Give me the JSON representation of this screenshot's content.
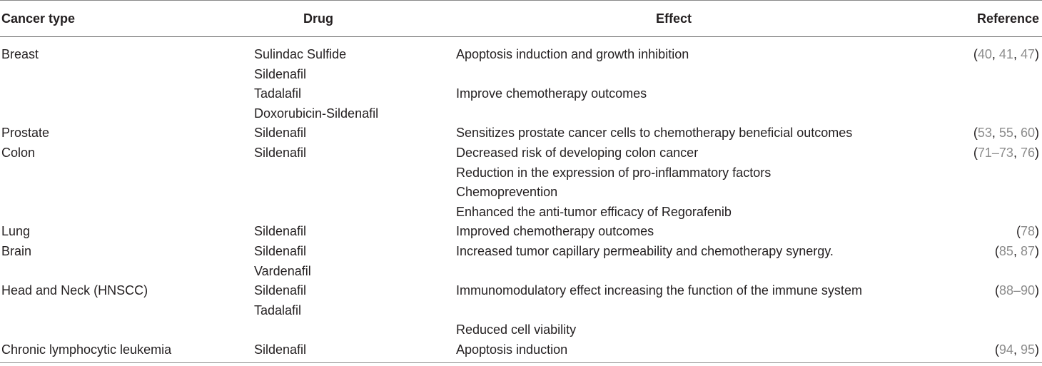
{
  "header": {
    "cancer_type": "Cancer type",
    "drug": "Drug",
    "effect": "Effect",
    "reference": "Reference"
  },
  "rows": [
    {
      "cancer_type": "Breast",
      "drug": "Sulindac Sulfide",
      "effect": "Apoptosis induction and growth inhibition",
      "ref": [
        "40",
        "41",
        "47"
      ]
    },
    {
      "cancer_type": "",
      "drug": "Sildenafil",
      "effect": "",
      "ref": []
    },
    {
      "cancer_type": "",
      "drug": "Tadalafil",
      "effect": "Improve chemotherapy outcomes",
      "ref": []
    },
    {
      "cancer_type": "",
      "drug": "Doxorubicin-Sildenafil",
      "effect": "",
      "ref": []
    },
    {
      "cancer_type": "Prostate",
      "drug": "Sildenafil",
      "effect": "Sensitizes prostate cancer cells to chemotherapy beneficial outcomes",
      "ref": [
        "53",
        "55",
        "60"
      ]
    },
    {
      "cancer_type": "Colon",
      "drug": "Sildenafil",
      "effect": "Decreased risk of developing colon cancer",
      "ref": [
        "71–73",
        "76"
      ]
    },
    {
      "cancer_type": "",
      "drug": "",
      "effect": "Reduction in the expression of pro-inflammatory factors",
      "ref": []
    },
    {
      "cancer_type": "",
      "drug": "",
      "effect": "Chemoprevention",
      "ref": []
    },
    {
      "cancer_type": "",
      "drug": "",
      "effect": "Enhanced the anti-tumor efficacy of Regorafenib",
      "ref": []
    },
    {
      "cancer_type": "Lung",
      "drug": "Sildenafil",
      "effect": "Improved chemotherapy outcomes",
      "ref": [
        "78"
      ]
    },
    {
      "cancer_type": "Brain",
      "drug": "Sildenafil",
      "effect": "Increased tumor capillary permeability and chemotherapy synergy.",
      "ref": [
        "85",
        "87"
      ]
    },
    {
      "cancer_type": "",
      "drug": "Vardenafil",
      "effect": "",
      "ref": []
    },
    {
      "cancer_type": "Head and Neck (HNSCC)",
      "drug": "Sildenafil",
      "effect": "Immunomodulatory effect increasing the function of the immune system",
      "ref": [
        "88–90"
      ]
    },
    {
      "cancer_type": "",
      "drug": "Tadalafil",
      "effect": "",
      "ref": []
    },
    {
      "cancer_type": "",
      "drug": "",
      "effect": "Reduced cell viability",
      "ref": []
    },
    {
      "cancer_type": "Chronic lymphocytic leukemia",
      "drug": "Sildenafil",
      "effect": "Apoptosis induction",
      "ref": [
        "94",
        "95"
      ]
    }
  ]
}
